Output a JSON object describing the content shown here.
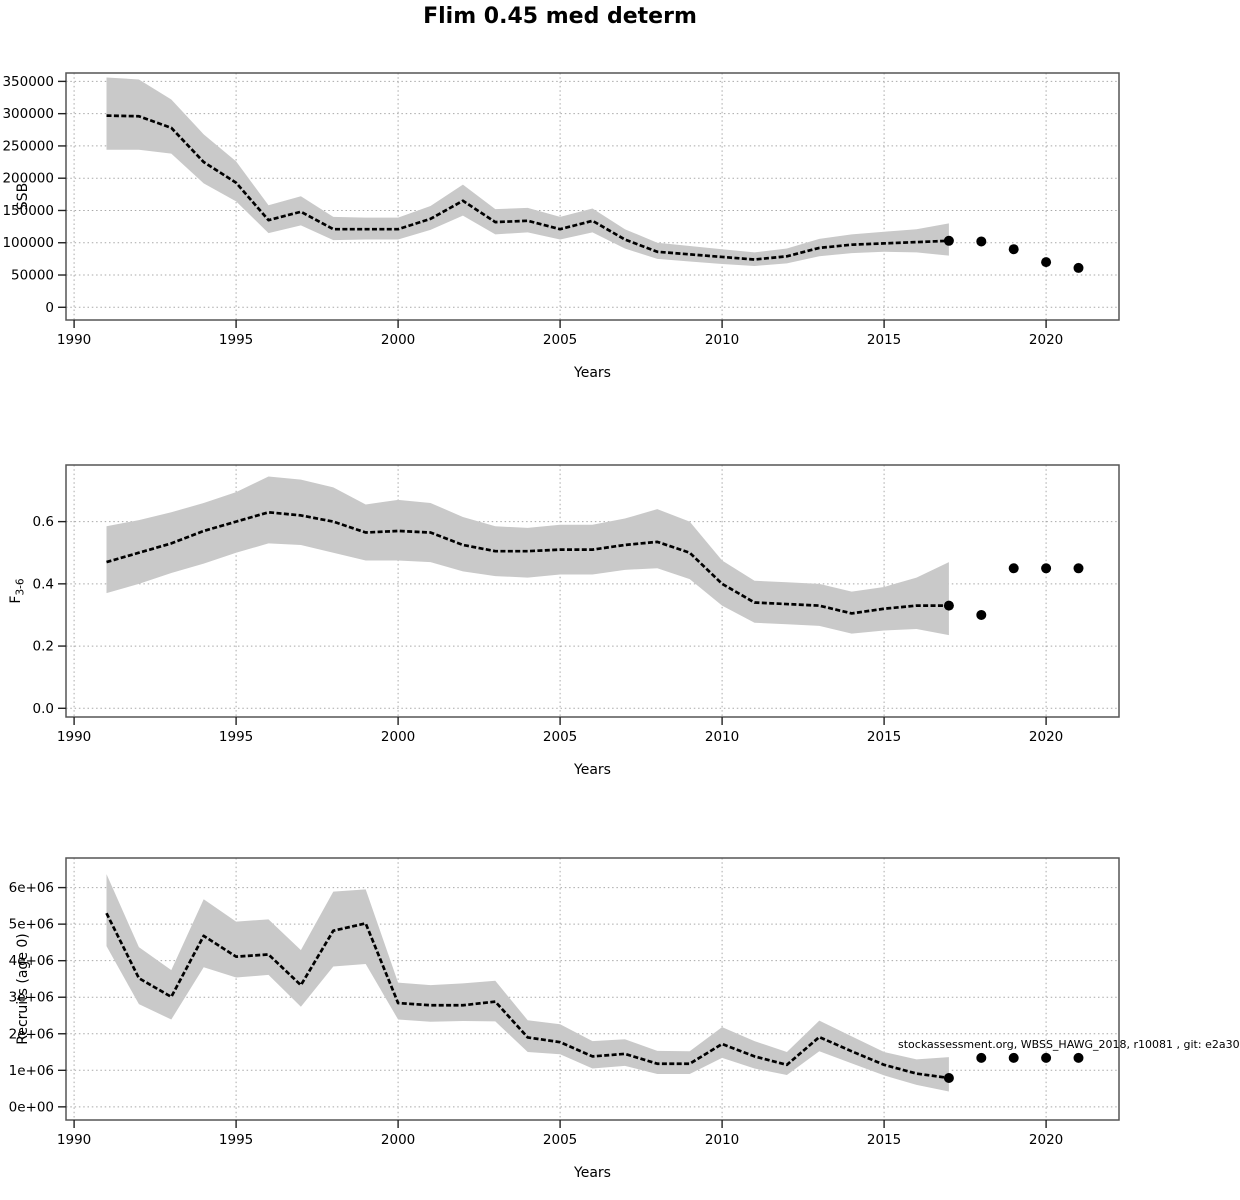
{
  "title": "Flim 0.45 med determ",
  "watermark": "stockassessment.org, WBSS_HAWG_2018, r10081 , git: e2a30",
  "colors": {
    "background": "#ffffff",
    "band": "#c9c9c9",
    "median_line": "#000000",
    "forecast_dot": "#000000",
    "grid": "#a9a9a9",
    "axis_box": "#555555",
    "tick": "#222222",
    "text": "#000000"
  },
  "x_axis": {
    "label": "Years",
    "ticks": [
      1990,
      1995,
      2000,
      2005,
      2010,
      2015,
      2020
    ],
    "range": [
      1989.75,
      2022.25
    ]
  },
  "chart_data": [
    {
      "type": "area",
      "name": "ssb",
      "title": "",
      "ylabel": "SSB",
      "xlabel": "Years",
      "grid": true,
      "ylim": [
        -19700,
        363000
      ],
      "yticks": [
        0,
        50000,
        100000,
        150000,
        200000,
        250000,
        300000,
        350000
      ],
      "ytick_labels": [
        "0",
        "50000",
        "100000",
        "150000",
        "200000",
        "250000",
        "300000",
        "350000"
      ],
      "x": [
        1991,
        1992,
        1993,
        1994,
        1995,
        1996,
        1997,
        1998,
        1999,
        2000,
        2001,
        2002,
        2003,
        2004,
        2005,
        2006,
        2007,
        2008,
        2009,
        2010,
        2011,
        2012,
        2013,
        2014,
        2015,
        2016,
        2017
      ],
      "series": [
        {
          "name": "median",
          "values": [
            297000,
            296000,
            278000,
            225000,
            193000,
            135000,
            148000,
            121000,
            121000,
            121000,
            137000,
            165000,
            132000,
            134000,
            121000,
            134000,
            105000,
            86000,
            82000,
            78000,
            74000,
            79000,
            92000,
            97000,
            99000,
            101000,
            103000
          ]
        },
        {
          "name": "upper_ci",
          "values": [
            356000,
            353000,
            322000,
            268000,
            226000,
            158000,
            172000,
            140000,
            139000,
            139000,
            157000,
            190000,
            152000,
            154000,
            140000,
            153000,
            121000,
            100000,
            95000,
            90000,
            85000,
            91000,
            106000,
            113000,
            117000,
            121000,
            130000
          ]
        },
        {
          "name": "lower_ci",
          "values": [
            244000,
            244000,
            238000,
            192000,
            164000,
            115000,
            127000,
            104000,
            105000,
            105000,
            120000,
            142000,
            113000,
            116000,
            105000,
            116000,
            91000,
            75000,
            71000,
            67000,
            64000,
            68000,
            79000,
            84000,
            86000,
            85000,
            80000
          ]
        }
      ],
      "forecast_points": {
        "x": [
          2017,
          2018,
          2019,
          2020,
          2021
        ],
        "y": [
          103000,
          102000,
          90000,
          70000,
          61000
        ]
      }
    },
    {
      "type": "area",
      "name": "f3-6",
      "title": "",
      "ylabel": "F",
      "ylabel_sub": "3-6",
      "xlabel": "Years",
      "grid": true,
      "ylim": [
        -0.028,
        0.782
      ],
      "yticks": [
        0.0,
        0.2,
        0.4,
        0.6
      ],
      "ytick_labels": [
        "0.0",
        "0.2",
        "0.4",
        "0.6"
      ],
      "x": [
        1991,
        1992,
        1993,
        1994,
        1995,
        1996,
        1997,
        1998,
        1999,
        2000,
        2001,
        2002,
        2003,
        2004,
        2005,
        2006,
        2007,
        2008,
        2009,
        2010,
        2011,
        2012,
        2013,
        2014,
        2015,
        2016,
        2017
      ],
      "series": [
        {
          "name": "median",
          "values": [
            0.47,
            0.5,
            0.53,
            0.57,
            0.6,
            0.63,
            0.62,
            0.6,
            0.565,
            0.57,
            0.565,
            0.525,
            0.505,
            0.505,
            0.51,
            0.51,
            0.525,
            0.535,
            0.5,
            0.4,
            0.34,
            0.335,
            0.33,
            0.305,
            0.32,
            0.33,
            0.33
          ]
        },
        {
          "name": "upper_ci",
          "values": [
            0.585,
            0.605,
            0.63,
            0.66,
            0.695,
            0.745,
            0.735,
            0.71,
            0.655,
            0.67,
            0.66,
            0.615,
            0.585,
            0.58,
            0.59,
            0.59,
            0.61,
            0.64,
            0.6,
            0.475,
            0.41,
            0.405,
            0.4,
            0.375,
            0.39,
            0.42,
            0.47
          ]
        },
        {
          "name": "lower_ci",
          "values": [
            0.37,
            0.4,
            0.435,
            0.465,
            0.5,
            0.53,
            0.525,
            0.5,
            0.475,
            0.475,
            0.47,
            0.44,
            0.425,
            0.42,
            0.43,
            0.43,
            0.445,
            0.45,
            0.415,
            0.33,
            0.275,
            0.27,
            0.265,
            0.24,
            0.25,
            0.255,
            0.235
          ]
        }
      ],
      "forecast_points": {
        "x": [
          2017,
          2018,
          2019,
          2020,
          2021
        ],
        "y": [
          0.33,
          0.3,
          0.45,
          0.45,
          0.45
        ]
      }
    },
    {
      "type": "area",
      "name": "recruits",
      "title": "",
      "ylabel": "Recruits (age 0)",
      "xlabel": "Years",
      "grid": true,
      "ylim": [
        -360000,
        6810000
      ],
      "yticks": [
        0,
        1000000,
        2000000,
        3000000,
        4000000,
        5000000,
        6000000
      ],
      "ytick_labels": [
        "0e+00",
        "1e+06",
        "2e+06",
        "3e+06",
        "4e+06",
        "5e+06",
        "6e+06"
      ],
      "x": [
        1991,
        1992,
        1993,
        1994,
        1995,
        1996,
        1997,
        1998,
        1999,
        2000,
        2001,
        2002,
        2003,
        2004,
        2005,
        2006,
        2007,
        2008,
        2009,
        2010,
        2011,
        2012,
        2013,
        2014,
        2015,
        2016,
        2017
      ],
      "series": [
        {
          "name": "median",
          "values": [
            5300000,
            3520000,
            3010000,
            4680000,
            4110000,
            4170000,
            3330000,
            4820000,
            5020000,
            2840000,
            2780000,
            2780000,
            2880000,
            1900000,
            1770000,
            1380000,
            1450000,
            1180000,
            1180000,
            1720000,
            1380000,
            1150000,
            1910000,
            1520000,
            1150000,
            910000,
            790000
          ]
        },
        {
          "name": "upper_ci",
          "values": [
            6370000,
            4370000,
            3740000,
            5680000,
            5070000,
            5130000,
            4290000,
            5890000,
            5950000,
            3400000,
            3330000,
            3380000,
            3450000,
            2370000,
            2260000,
            1800000,
            1850000,
            1530000,
            1520000,
            2180000,
            1800000,
            1500000,
            2360000,
            1930000,
            1500000,
            1300000,
            1360000
          ]
        },
        {
          "name": "lower_ci",
          "values": [
            4400000,
            2810000,
            2390000,
            3820000,
            3540000,
            3610000,
            2740000,
            3840000,
            3910000,
            2390000,
            2330000,
            2350000,
            2340000,
            1500000,
            1440000,
            1050000,
            1120000,
            900000,
            900000,
            1340000,
            1050000,
            870000,
            1520000,
            1190000,
            860000,
            600000,
            420000
          ]
        }
      ],
      "forecast_points": {
        "x": [
          2017,
          2018,
          2019,
          2020,
          2021
        ],
        "y": [
          790000,
          1340000,
          1340000,
          1340000,
          1340000
        ]
      }
    }
  ]
}
